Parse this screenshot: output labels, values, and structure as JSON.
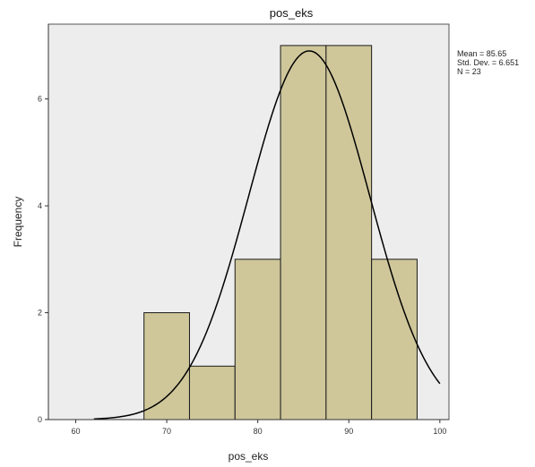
{
  "chart_data": {
    "type": "bar",
    "title": "pos_eks",
    "xlabel": "pos_eks",
    "ylabel": "Frequency",
    "bins": [
      {
        "start": 67.5,
        "end": 72.5,
        "count": 2
      },
      {
        "start": 72.5,
        "end": 77.5,
        "count": 1
      },
      {
        "start": 77.5,
        "end": 82.5,
        "count": 3
      },
      {
        "start": 82.5,
        "end": 87.5,
        "count": 7
      },
      {
        "start": 87.5,
        "end": 92.5,
        "count": 7
      },
      {
        "start": 92.5,
        "end": 97.5,
        "count": 3
      }
    ],
    "xticks": [
      "60",
      "70",
      "80",
      "90",
      "100"
    ],
    "yticks": [
      "0",
      "2",
      "4",
      "6"
    ],
    "xlim": [
      57,
      101
    ],
    "ylim": [
      0,
      7.4
    ],
    "normal_curve": {
      "mean": 85.65,
      "sd": 6.65,
      "n": 23,
      "bin_width": 5
    },
    "stats": {
      "mean_label": "Mean = 85.65",
      "sd_label": "Std. Dev. = 6.651",
      "n_label": "N = 23"
    },
    "colors": {
      "plot_background": "#ededed",
      "bar_fill": "#cfc79a",
      "bar_stroke": "#1a1a1a",
      "curve": "#000000"
    },
    "grid": false,
    "legend": "right"
  }
}
